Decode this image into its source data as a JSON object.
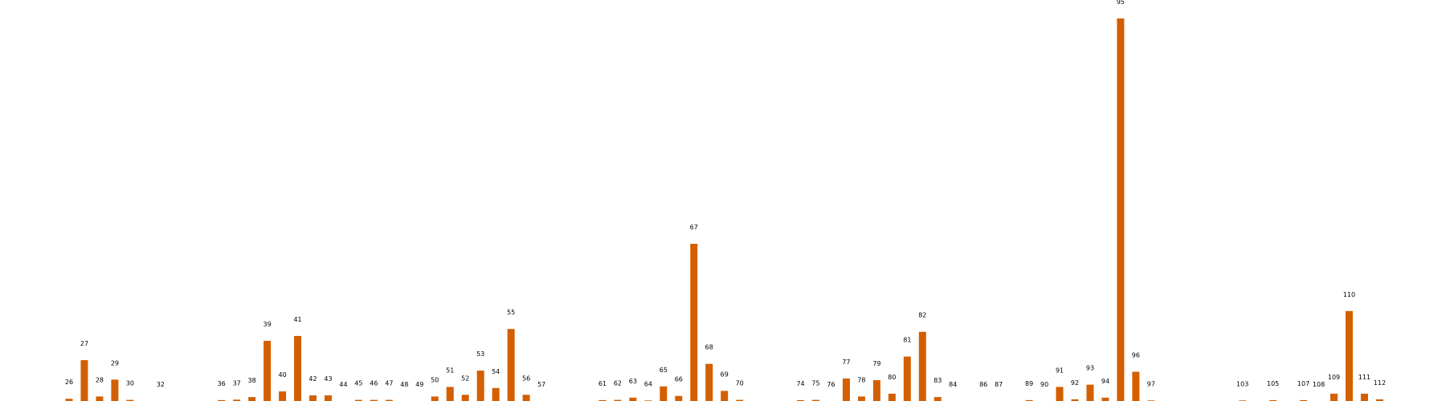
{
  "chart_data": {
    "type": "bar",
    "title": "",
    "xlabel": "",
    "ylabel": "",
    "bar_color": "#d35f00",
    "label_color": "#000000",
    "background": "#ffffff",
    "axes_visible": false,
    "grid": false,
    "legend": "none",
    "ylim": [
      0,
      3400
    ],
    "categories": [
      "26",
      "27",
      "28",
      "29",
      "30",
      "32",
      "36",
      "37",
      "38",
      "39",
      "40",
      "41",
      "42",
      "43",
      "44",
      "45",
      "46",
      "47",
      "48",
      "49",
      "50",
      "51",
      "52",
      "53",
      "54",
      "55",
      "56",
      "57",
      "61",
      "62",
      "63",
      "64",
      "65",
      "66",
      "67",
      "68",
      "69",
      "70",
      "74",
      "75",
      "76",
      "77",
      "78",
      "79",
      "80",
      "81",
      "82",
      "83",
      "84",
      "86",
      "87",
      "89",
      "90",
      "91",
      "92",
      "93",
      "94",
      "95",
      "96",
      "97",
      "103",
      "105",
      "107",
      "108",
      "109",
      "110",
      "111",
      "112"
    ],
    "values": [
      20,
      363,
      40,
      190,
      10,
      0,
      8,
      12,
      35,
      535,
      85,
      578,
      50,
      50,
      0,
      10,
      10,
      10,
      0,
      0,
      40,
      125,
      55,
      270,
      115,
      640,
      55,
      0,
      8,
      10,
      30,
      5,
      130,
      45,
      1397,
      330,
      90,
      10,
      8,
      10,
      0,
      200,
      40,
      185,
      65,
      395,
      615,
      35,
      0,
      0,
      0,
      8,
      0,
      125,
      15,
      145,
      30,
      3400,
      260,
      5,
      5,
      8,
      8,
      0,
      65,
      800,
      65,
      15
    ],
    "positions": [
      26,
      27,
      28,
      29,
      30,
      32,
      36,
      37,
      38,
      39,
      40,
      41,
      42,
      43,
      44,
      45,
      46,
      47,
      48,
      49,
      50,
      51,
      52,
      53,
      54,
      55,
      56,
      57,
      61,
      62,
      63,
      64,
      65,
      66,
      67,
      68,
      69,
      70,
      74,
      75,
      76,
      77,
      78,
      79,
      80,
      81,
      82,
      83,
      84,
      86,
      87,
      89,
      90,
      91,
      92,
      93,
      94,
      95,
      96,
      97,
      103,
      105,
      107,
      108,
      109,
      110,
      111,
      112
    ]
  }
}
